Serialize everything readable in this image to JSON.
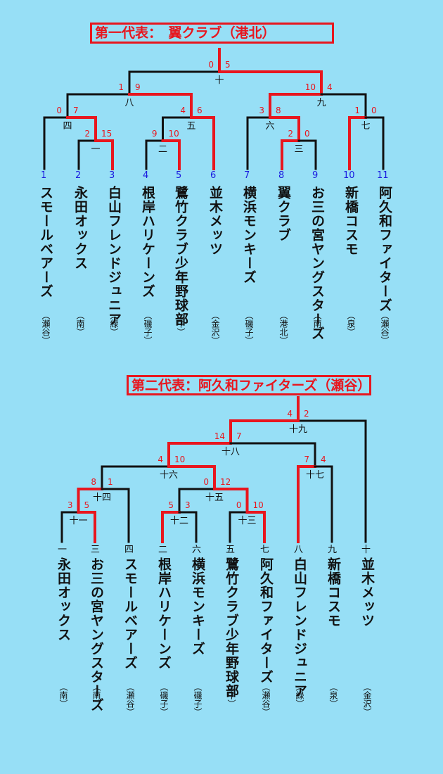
{
  "bracket1": {
    "title": "第一代表：　翼クラブ（港北）",
    "teams": [
      {
        "num": "1",
        "name": "スモールベアーズ",
        "area": "（瀬谷）"
      },
      {
        "num": "2",
        "name": "永田オックス",
        "area": "（南）"
      },
      {
        "num": "3",
        "name": "白山フレンドジュニア",
        "area": "（緑）"
      },
      {
        "num": "4",
        "name": "根岸ハリケーンズ",
        "area": "（磯子）"
      },
      {
        "num": "5",
        "name": "鷺竹クラブ少年野球部",
        "area": "（中）"
      },
      {
        "num": "6",
        "name": "並木メッツ",
        "area": "（金沢）"
      },
      {
        "num": "7",
        "name": "横浜モンキーズ",
        "area": "（磯子）"
      },
      {
        "num": "8",
        "name": "翼クラブ",
        "area": "（港北）"
      },
      {
        "num": "9",
        "name": "お三の宮ヤングスターズ",
        "area": "（南）"
      },
      {
        "num": "10",
        "name": "新橋コスモ",
        "area": "（泉）"
      },
      {
        "num": "11",
        "name": "阿久和ファイターズ",
        "area": "（瀬谷）"
      }
    ],
    "games": [
      {
        "label": "一",
        "ls": "2",
        "rs": "15"
      },
      {
        "label": "二",
        "ls": "9",
        "rs": "10"
      },
      {
        "label": "三",
        "ls": "2",
        "rs": "0"
      },
      {
        "label": "四",
        "ls": "0",
        "rs": "7"
      },
      {
        "label": "五",
        "ls": "4",
        "rs": "6"
      },
      {
        "label": "六",
        "ls": "3",
        "rs": "8"
      },
      {
        "label": "七",
        "ls": "1",
        "rs": "0"
      },
      {
        "label": "八",
        "ls": "1",
        "rs": "9"
      },
      {
        "label": "九",
        "ls": "10",
        "rs": "4"
      },
      {
        "label": "十",
        "ls": "0",
        "rs": "5"
      }
    ]
  },
  "bracket2": {
    "title": "第二代表：阿久和ファイターズ（瀬谷）",
    "teams": [
      {
        "seed": "一",
        "name": "永田オックス",
        "area": "（南）"
      },
      {
        "seed": "三",
        "name": "お三の宮ヤングスターズ",
        "area": "（南）"
      },
      {
        "seed": "四",
        "name": "スモールベアーズ",
        "area": "（瀬谷）"
      },
      {
        "seed": "二",
        "name": "根岸ハリケーンズ",
        "area": "（磯子）"
      },
      {
        "seed": "六",
        "name": "横浜モンキーズ",
        "area": "（磯子）"
      },
      {
        "seed": "五",
        "name": "鷺竹クラブ少年野球部",
        "area": "（中）"
      },
      {
        "seed": "七",
        "name": "阿久和ファイターズ",
        "area": "（瀬谷）"
      },
      {
        "seed": "八",
        "name": "白山フレンドジュニア",
        "area": "（緑）"
      },
      {
        "seed": "九",
        "name": "新橋コスモ",
        "area": "（泉）"
      },
      {
        "seed": "十",
        "name": "並木メッツ",
        "area": "（金沢）"
      }
    ],
    "games": [
      {
        "label": "十一",
        "ls": "3",
        "rs": "5"
      },
      {
        "label": "十二",
        "ls": "5",
        "rs": "3"
      },
      {
        "label": "十三",
        "ls": "0",
        "rs": "10"
      },
      {
        "label": "十四",
        "ls": "8",
        "rs": "1"
      },
      {
        "label": "十五",
        "ls": "0",
        "rs": "12"
      },
      {
        "label": "十六",
        "ls": "4",
        "rs": "10"
      },
      {
        "label": "十七",
        "ls": "7",
        "rs": "4"
      },
      {
        "label": "十八",
        "ls": "14",
        "rs": "7"
      },
      {
        "label": "十九",
        "ls": "4",
        "rs": "2"
      }
    ]
  },
  "colors": {
    "background": "#97dff6",
    "win": "#e8161e",
    "line": "#111111",
    "number": "#1a1adf"
  }
}
